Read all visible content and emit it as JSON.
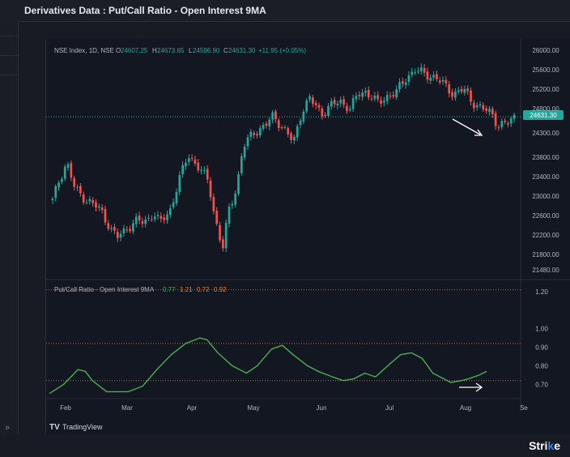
{
  "header": {
    "title": "Derivatives Data : Put/Call Ratio - Open Interest 9MA"
  },
  "legend": {
    "symbol": "NSE Index, 1D, NSE",
    "o_label": "O",
    "o": "24607.25",
    "h_label": "H",
    "h": "24673.65",
    "l_label": "L",
    "l": "24596.90",
    "c_label": "C",
    "c": "24631.30",
    "change": "+11.95 (+0.05%)"
  },
  "price_tag": "24631.30",
  "indicator": {
    "title": "Put/Call Ratio - Open Interest 9MA",
    "v1": "0.77",
    "v2": "1.21",
    "v3": "0.72",
    "v4": "0.92"
  },
  "branding": {
    "tradingview": "TradingView",
    "strike_a": "Stri",
    "strike_b": "k",
    "strike_c": "e"
  },
  "footer": {
    "expand_icon": "»"
  },
  "colors": {
    "up": "#26a69a",
    "down": "#ef5350",
    "pcr_line": "#4caf50",
    "band": "#f57c00",
    "price_line": "#26a69a"
  },
  "chart_data": [
    {
      "type": "candlestick",
      "series_name": "NSE Index",
      "y_ticks": [
        "26000.00",
        "25600.00",
        "25200.00",
        "24800.00",
        "24300.00",
        "23800.00",
        "23400.00",
        "23000.00",
        "22600.00",
        "22200.00",
        "21800.00",
        "21480.00"
      ],
      "x_ticks": [
        "Feb",
        "Mar",
        "Apr",
        "May",
        "Jun",
        "Jul",
        "Aug",
        "Se"
      ],
      "ylim": [
        21400,
        26100
      ],
      "last_price": 24631.3,
      "close_path": [
        [
          "2024-01-29",
          22900
        ],
        [
          "2024-02-01",
          23300
        ],
        [
          "2024-02-05",
          23700
        ],
        [
          "2024-02-09",
          23150
        ],
        [
          "2024-02-14",
          22950
        ],
        [
          "2024-02-19",
          22800
        ],
        [
          "2024-02-22",
          22700
        ],
        [
          "2024-02-27",
          22300
        ],
        [
          "2024-03-01",
          22150
        ],
        [
          "2024-03-06",
          22350
        ],
        [
          "2024-03-11",
          22500
        ],
        [
          "2024-03-14",
          22450
        ],
        [
          "2024-03-19",
          22650
        ],
        [
          "2024-03-22",
          22450
        ],
        [
          "2024-03-27",
          22700
        ],
        [
          "2024-04-01",
          23400
        ],
        [
          "2024-04-05",
          23850
        ],
        [
          "2024-04-10",
          23600
        ],
        [
          "2024-04-15",
          23300
        ],
        [
          "2024-04-18",
          22600
        ],
        [
          "2024-04-22",
          21900
        ],
        [
          "2024-04-25",
          22700
        ],
        [
          "2024-04-29",
          23200
        ],
        [
          "2024-05-02",
          24000
        ],
        [
          "2024-05-07",
          24300
        ],
        [
          "2024-05-13",
          24450
        ],
        [
          "2024-05-17",
          24650
        ],
        [
          "2024-05-22",
          24400
        ],
        [
          "2024-05-27",
          24100
        ],
        [
          "2024-05-31",
          24750
        ],
        [
          "2024-06-04",
          25000
        ],
        [
          "2024-06-10",
          24700
        ],
        [
          "2024-06-14",
          24850
        ],
        [
          "2024-06-19",
          24950
        ],
        [
          "2024-06-24",
          24800
        ],
        [
          "2024-06-28",
          25100
        ],
        [
          "2024-07-02",
          25150
        ],
        [
          "2024-07-08",
          24900
        ],
        [
          "2024-07-12",
          25050
        ],
        [
          "2024-07-17",
          25150
        ],
        [
          "2024-07-22",
          25450
        ],
        [
          "2024-07-26",
          25600
        ],
        [
          "2024-07-31",
          25500
        ],
        [
          "2024-08-05",
          25450
        ],
        [
          "2024-08-09",
          25300
        ],
        [
          "2024-08-14",
          25100
        ],
        [
          "2024-08-19",
          25200
        ],
        [
          "2024-08-23",
          24950
        ],
        [
          "2024-08-28",
          24800
        ],
        [
          "2024-09-02",
          24700
        ],
        [
          "2024-09-05",
          24450
        ],
        [
          "2024-09-10",
          24500
        ],
        [
          "2024-09-13",
          24631.3
        ]
      ]
    },
    {
      "type": "line",
      "series_name": "Put/Call Ratio - Open Interest 9MA",
      "y_ticks": [
        "1.20",
        "1.00",
        "0.90",
        "0.80",
        "0.70"
      ],
      "x_ticks": [
        "Feb",
        "Mar",
        "Apr",
        "May",
        "Jun",
        "Jul",
        "Aug",
        "Se"
      ],
      "ylim": [
        0.64,
        1.23
      ],
      "reference_lines": [
        1.21,
        0.92,
        0.72
      ],
      "points": [
        [
          0,
          0.65
        ],
        [
          4,
          0.7
        ],
        [
          8,
          0.78
        ],
        [
          10,
          0.77
        ],
        [
          12,
          0.72
        ],
        [
          16,
          0.66
        ],
        [
          22,
          0.66
        ],
        [
          26,
          0.69
        ],
        [
          30,
          0.78
        ],
        [
          34,
          0.86
        ],
        [
          38,
          0.92
        ],
        [
          42,
          0.95
        ],
        [
          44,
          0.94
        ],
        [
          47,
          0.87
        ],
        [
          51,
          0.8
        ],
        [
          55,
          0.76
        ],
        [
          58,
          0.8
        ],
        [
          62,
          0.89
        ],
        [
          65,
          0.91
        ],
        [
          68,
          0.86
        ],
        [
          72,
          0.8
        ],
        [
          75,
          0.77
        ],
        [
          79,
          0.74
        ],
        [
          82,
          0.72
        ],
        [
          85,
          0.73
        ],
        [
          88,
          0.76
        ],
        [
          91,
          0.74
        ],
        [
          95,
          0.81
        ],
        [
          98,
          0.86
        ],
        [
          101,
          0.87
        ],
        [
          104,
          0.84
        ],
        [
          107,
          0.76
        ],
        [
          110,
          0.73
        ],
        [
          112,
          0.71
        ],
        [
          115,
          0.72
        ],
        [
          117,
          0.73
        ],
        [
          120,
          0.75
        ],
        [
          122,
          0.77
        ]
      ]
    }
  ]
}
